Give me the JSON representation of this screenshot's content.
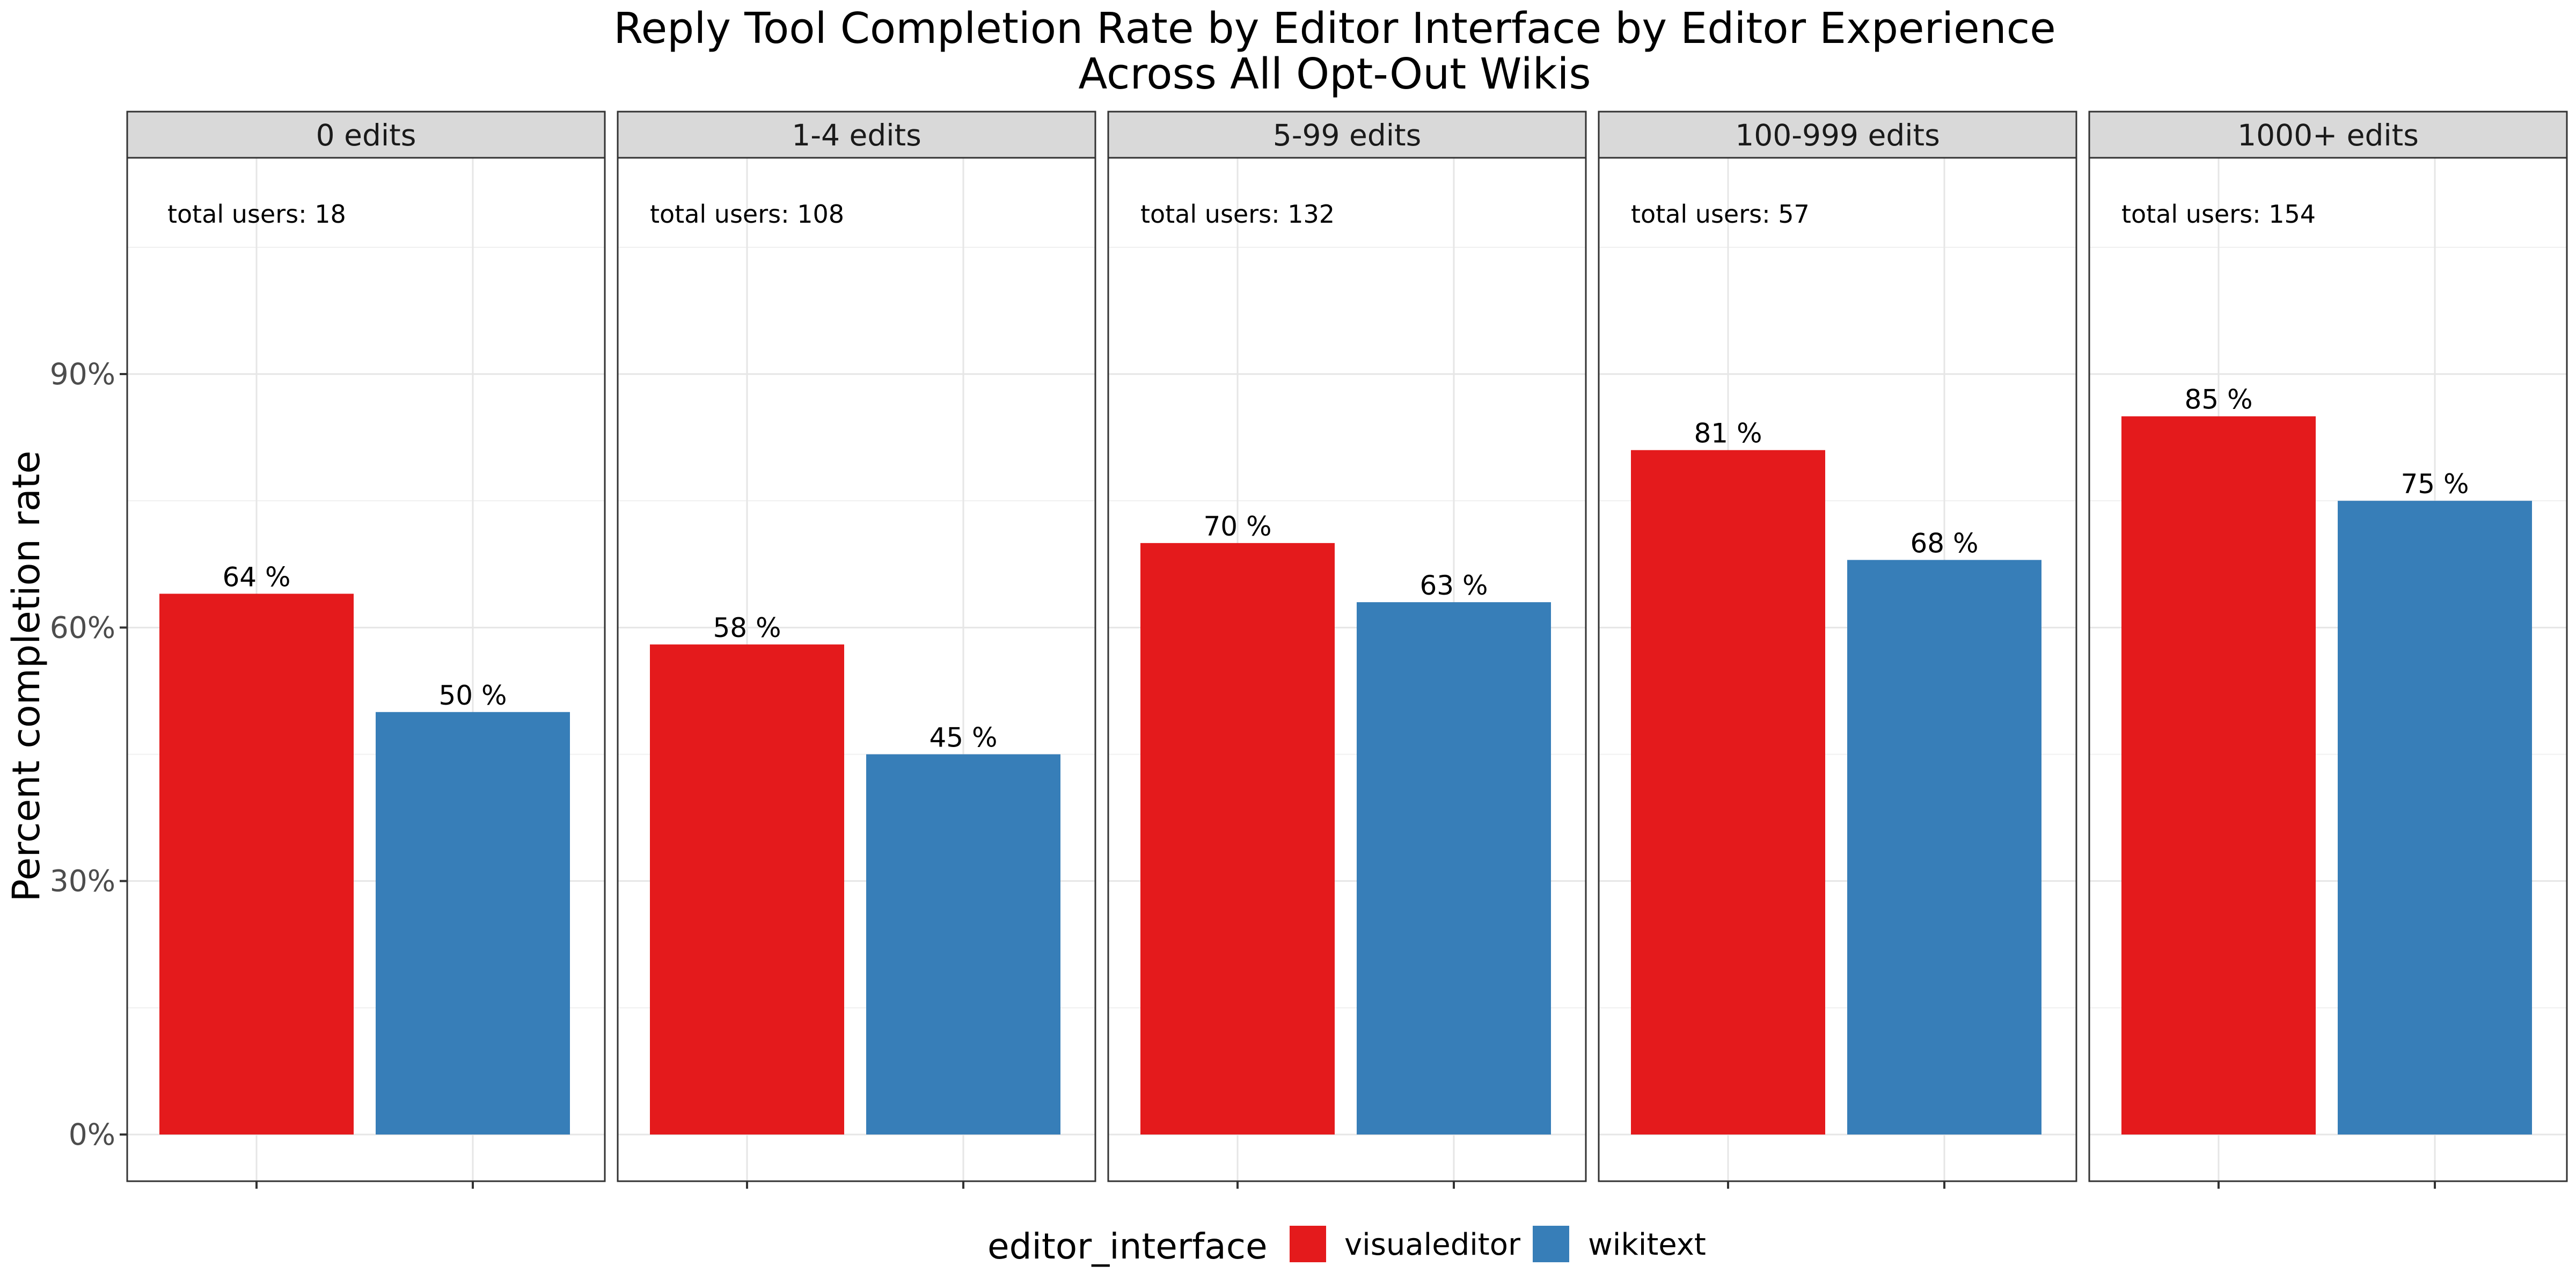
{
  "chart_data": {
    "type": "bar",
    "title_line1": "Reply Tool Completion Rate by Editor Interface by Editor Experience",
    "title_line2": "Across All Opt-Out Wikis",
    "ylabel": "Percent completion rate",
    "xlabel": "",
    "ylim": [
      0,
      120
    ],
    "y_ticks": [
      0,
      30,
      60,
      90
    ],
    "y_tick_labels": [
      "0%",
      "30%",
      "60%",
      "90%"
    ],
    "grid": true,
    "legend": {
      "title": "editor_interface",
      "position": "bottom",
      "items": [
        {
          "name": "visualeditor",
          "color": "#E41A1C"
        },
        {
          "name": "wikitext",
          "color": "#377EB8"
        }
      ]
    },
    "panels": [
      {
        "label": "0 edits",
        "annotation": "total users: 18",
        "values": [
          64,
          50
        ],
        "value_labels": [
          "64 %",
          "50 %"
        ]
      },
      {
        "label": "1-4 edits",
        "annotation": "total users: 108",
        "values": [
          58,
          45
        ],
        "value_labels": [
          "58 %",
          "45 %"
        ]
      },
      {
        "label": "5-99 edits",
        "annotation": "total users: 132",
        "values": [
          70,
          63
        ],
        "value_labels": [
          "70 %",
          "63 %"
        ]
      },
      {
        "label": "100-999 edits",
        "annotation": "total users: 57",
        "values": [
          81,
          68
        ],
        "value_labels": [
          "81 %",
          "68 %"
        ]
      },
      {
        "label": "1000+ edits",
        "annotation": "total users: 154",
        "values": [
          85,
          75
        ],
        "value_labels": [
          "85 %",
          "75 %"
        ]
      }
    ]
  }
}
